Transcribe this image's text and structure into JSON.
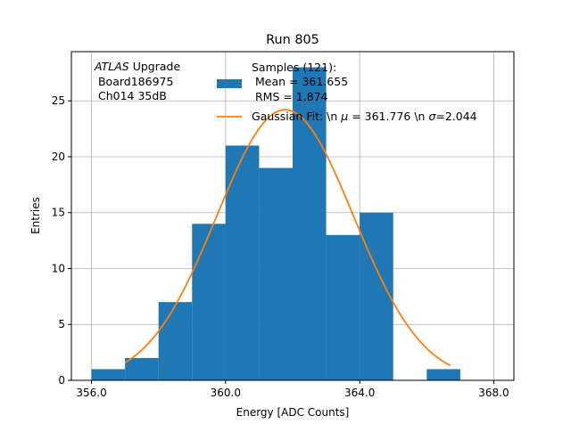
{
  "chart_data": {
    "type": "bar",
    "title": "Run 805",
    "xlabel": "Energy [ADC Counts]",
    "ylabel": "Entries",
    "xlim": [
      355.4,
      368.6
    ],
    "ylim": [
      0,
      29.4
    ],
    "grid": true,
    "xticks": [
      356,
      360,
      364,
      368
    ],
    "xtick_labels": [
      "356.0",
      "360.0",
      "364.0",
      "368.0"
    ],
    "yticks": [
      0,
      5,
      10,
      15,
      20,
      25
    ],
    "ytick_labels": [
      "0",
      "5",
      "10",
      "15",
      "20",
      "25"
    ],
    "bins": [
      {
        "x0": 356,
        "x1": 357,
        "count": 1
      },
      {
        "x0": 357,
        "x1": 358,
        "count": 2
      },
      {
        "x0": 358,
        "x1": 359,
        "count": 7
      },
      {
        "x0": 359,
        "x1": 360,
        "count": 14
      },
      {
        "x0": 360,
        "x1": 361,
        "count": 21
      },
      {
        "x0": 361,
        "x1": 362,
        "count": 19
      },
      {
        "x0": 362,
        "x1": 363,
        "count": 28
      },
      {
        "x0": 363,
        "x1": 364,
        "count": 13
      },
      {
        "x0": 364,
        "x1": 365,
        "count": 15
      },
      {
        "x0": 365,
        "x1": 366,
        "count": 0
      },
      {
        "x0": 366,
        "x1": 367,
        "count": 1
      }
    ],
    "fit": {
      "amplitude": 24.2,
      "mu": 361.776,
      "sigma": 2.044,
      "x_start": 357.0,
      "x_end": 366.7
    },
    "annotation": {
      "line1_italic": "ATLAS",
      "line1_rest": " Upgrade",
      "line2": " Board186975",
      "line3": " Ch014 35dB"
    },
    "legend": {
      "placement": "top-center",
      "hist_line1": "Samples (121):",
      "hist_line2": " Mean = 361.655",
      "hist_line3": " RMS = 1.874",
      "fit_label_a": "Gaussian Fit: \\n ",
      "fit_mu_sym": "μ",
      "fit_label_b": " = 361.776 \\n ",
      "fit_sigma_sym": "σ",
      "fit_label_c": "=2.044"
    },
    "colors": {
      "hist": "#1f77b4",
      "fit": "#ff7f0e",
      "grid": "#b0b0b0"
    }
  }
}
